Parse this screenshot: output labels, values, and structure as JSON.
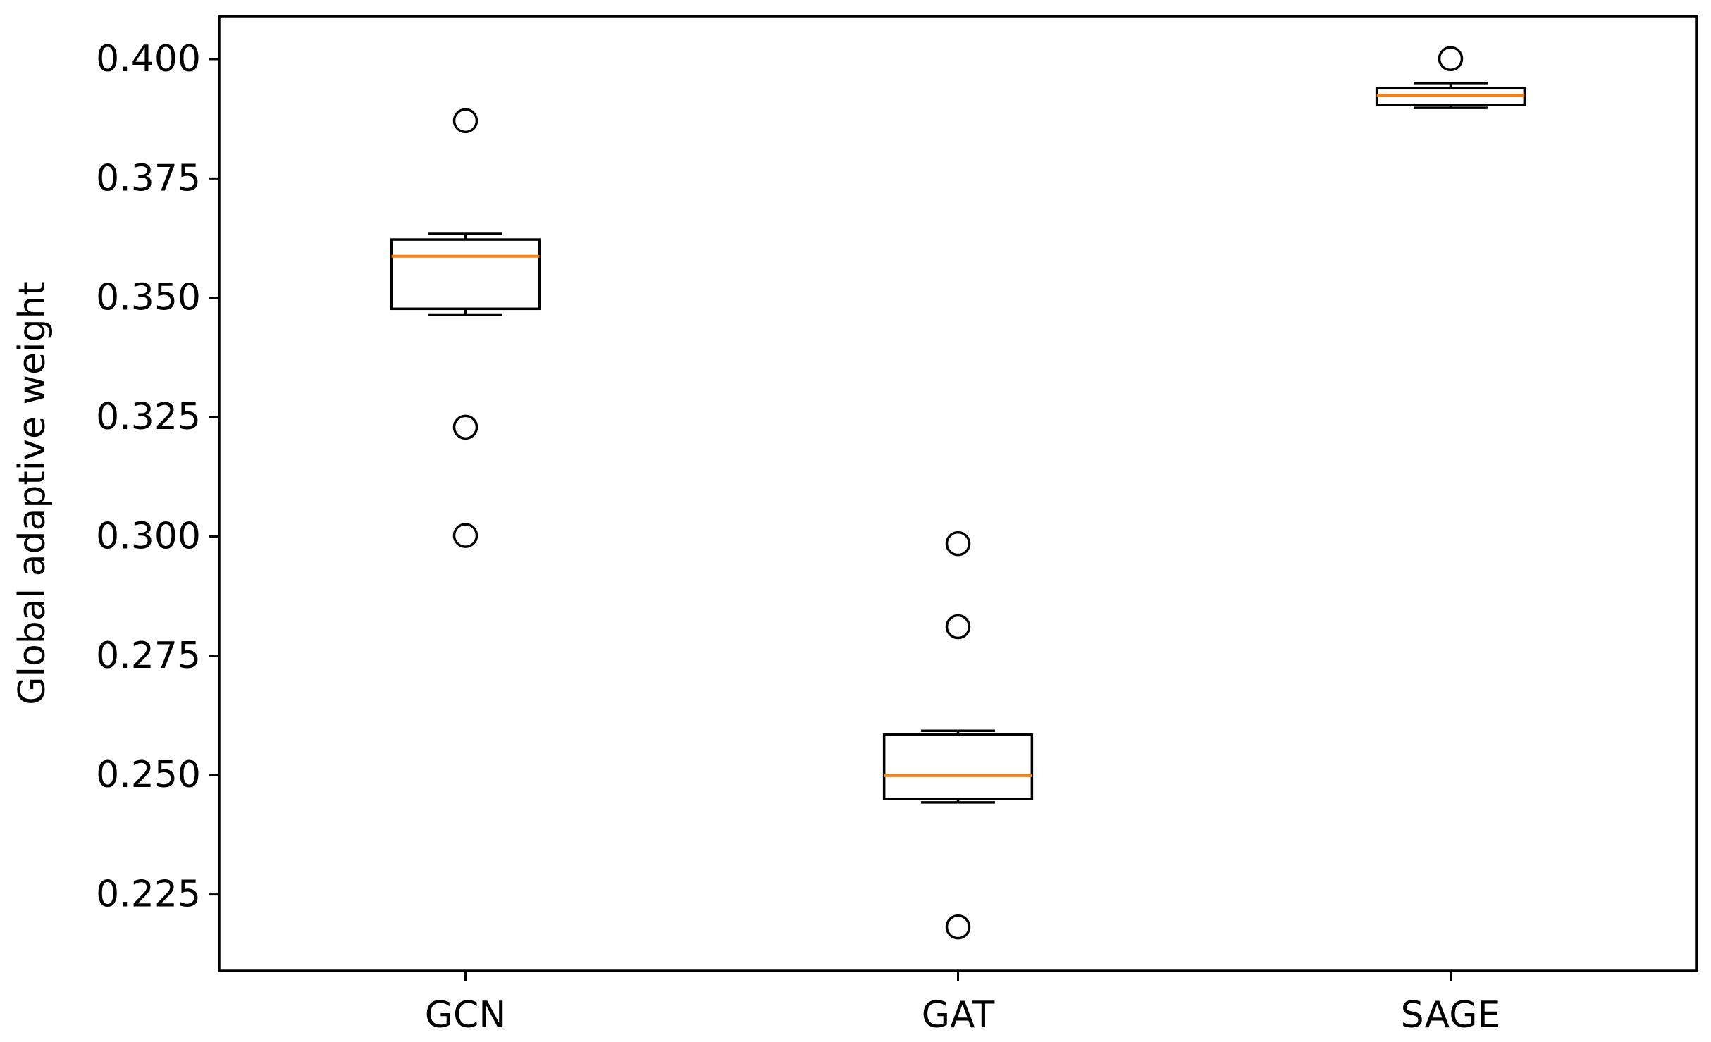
{
  "chart_data": {
    "type": "box",
    "ylabel": "Global adaptive weight",
    "xlabel": "",
    "title": "",
    "categories": [
      "GCN",
      "GAT",
      "SAGE"
    ],
    "ylim": [
      0.209,
      0.409
    ],
    "yticks": [
      0.225,
      0.25,
      0.275,
      0.3,
      0.325,
      0.35,
      0.375,
      0.4
    ],
    "ytick_labels": [
      "0.225",
      "0.250",
      "0.275",
      "0.300",
      "0.325",
      "0.350",
      "0.375",
      "0.400"
    ],
    "grid": false,
    "box_color": "#000000",
    "median_color": "#ff7f0e",
    "boxes": [
      {
        "category": "GCN",
        "whisker_low": 0.3465,
        "q1": 0.3477,
        "median": 0.3587,
        "q3": 0.3622,
        "whisker_high": 0.3634,
        "outliers": [
          0.3871,
          0.3229,
          0.3002
        ]
      },
      {
        "category": "GAT",
        "whisker_low": 0.2443,
        "q1": 0.245,
        "median": 0.2499,
        "q3": 0.2585,
        "whisker_high": 0.2593,
        "outliers": [
          0.2985,
          0.2811,
          0.2182
        ]
      },
      {
        "category": "SAGE",
        "whisker_low": 0.3898,
        "q1": 0.3904,
        "median": 0.3924,
        "q3": 0.3939,
        "whisker_high": 0.395,
        "outliers": [
          0.4001
        ]
      }
    ]
  }
}
